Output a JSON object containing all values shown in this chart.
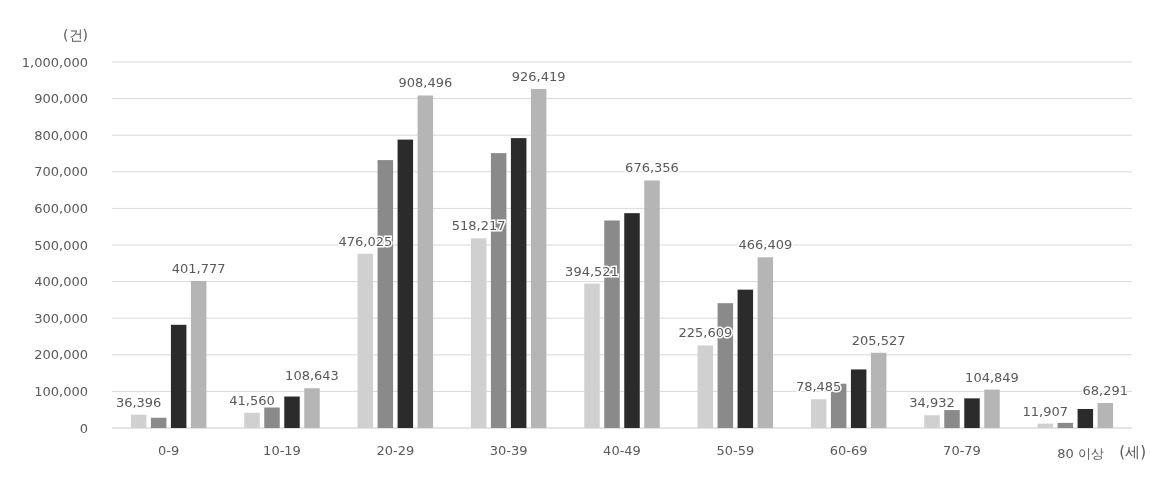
{
  "chart_data": {
    "type": "bar",
    "ylabel": "(건)",
    "xlabel": "(세)",
    "categories": [
      "0-9",
      "10-19",
      "20-29",
      "30-39",
      "40-49",
      "50-59",
      "60-69",
      "70-79",
      "80 이상"
    ],
    "series": [
      {
        "color": "#d0d0d0",
        "values": [
          36396,
          41560,
          476025,
          518217,
          394521,
          225609,
          78485,
          34932,
          11907
        ],
        "value_labels": [
          "36,396",
          "41,560",
          "476,025",
          "518,217",
          "394,521",
          "225,609",
          "78,485",
          "34,932",
          "11,907"
        ]
      },
      {
        "color": "#8a8a8a",
        "values": [
          28000,
          56000,
          732000,
          751000,
          567000,
          341000,
          121000,
          49000,
          14000
        ]
      },
      {
        "color": "#2b2b2b",
        "values": [
          282000,
          86000,
          788000,
          792000,
          587000,
          378000,
          160000,
          81000,
          52000
        ]
      },
      {
        "color": "#b5b5b5",
        "values": [
          401777,
          108643,
          908496,
          926419,
          676356,
          466409,
          205527,
          104849,
          68291
        ],
        "value_labels": [
          "401,777",
          "108,643",
          "908,496",
          "926,419",
          "676,356",
          "466,409",
          "205,527",
          "104,849",
          "68,291"
        ]
      }
    ],
    "ylim": [
      0,
      1000000
    ],
    "yticks": [
      0,
      {
        "value": 100000,
        "label": "100,000"
      },
      {
        "value": 200000,
        "label": "200,000"
      },
      {
        "value": 300000,
        "label": "300,000"
      },
      {
        "value": 400000,
        "label": "400,000"
      },
      {
        "value": 500000,
        "label": "500,000"
      },
      {
        "value": 600000,
        "label": "600,000"
      },
      {
        "value": 700000,
        "label": "700,000"
      },
      {
        "value": 800000,
        "label": "800,000"
      },
      {
        "value": 900000,
        "label": "900,000"
      },
      {
        "value": 1000000,
        "label": "1,000,000"
      }
    ],
    "grid": "y"
  }
}
